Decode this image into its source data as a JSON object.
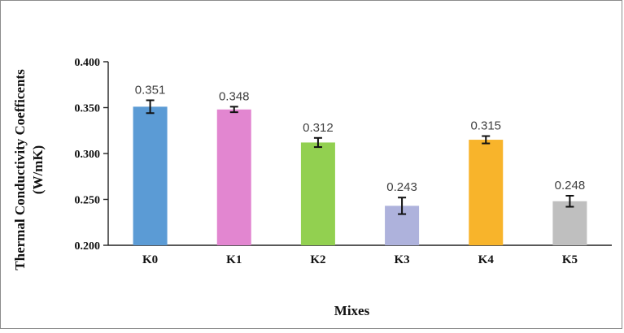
{
  "chart_data": {
    "type": "bar",
    "title": "",
    "xlabel": "Mixes",
    "ylabel_lines": [
      "Thermal Conductivity Coefficents",
      "(W/mK)"
    ],
    "categories": [
      "K0",
      "K1",
      "K2",
      "K3",
      "K4",
      "K5"
    ],
    "values": [
      0.351,
      0.348,
      0.312,
      0.243,
      0.315,
      0.248
    ],
    "data_labels": [
      "0.351",
      "0.348",
      "0.312",
      "0.243",
      "0.315",
      "0.248"
    ],
    "errors": [
      0.007,
      0.003,
      0.005,
      0.009,
      0.004,
      0.006
    ],
    "colors": [
      "#5b9bd5",
      "#e286d0",
      "#92d050",
      "#aeb2dc",
      "#f8b42b",
      "#bfbfbf"
    ],
    "ylim": [
      0.2,
      0.4
    ],
    "yticks": [
      "0.200",
      "0.250",
      "0.300",
      "0.350",
      "0.400"
    ],
    "grid": false,
    "legend": "none"
  }
}
